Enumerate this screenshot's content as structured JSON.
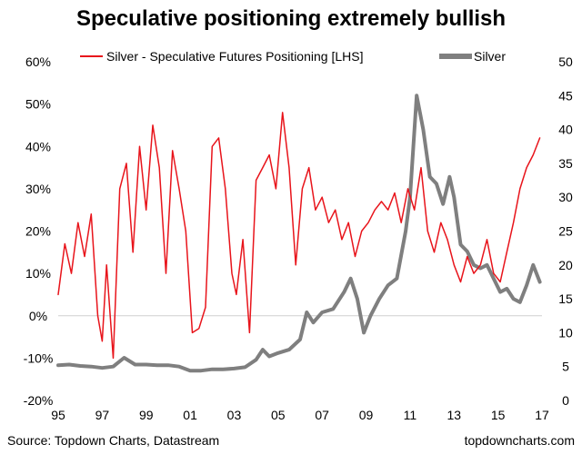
{
  "chart_data": {
    "type": "line",
    "title": "Speculative positioning extremely bullish",
    "source": "Source: Topdown Charts, Datastream",
    "watermark": "topdowncharts.com",
    "x_axis": {
      "range": [
        1995,
        2017
      ],
      "tick_values": [
        1995,
        1997,
        1999,
        2001,
        2003,
        2005,
        2007,
        2009,
        2011,
        2013,
        2015,
        2017
      ],
      "tick_labels": [
        "95",
        "97",
        "99",
        "01",
        "03",
        "05",
        "07",
        "09",
        "11",
        "13",
        "15",
        "17"
      ]
    },
    "y_left": {
      "range": [
        -20,
        60
      ],
      "tick_values": [
        -20,
        -10,
        0,
        10,
        20,
        30,
        40,
        50,
        60
      ],
      "tick_labels": [
        "-20%",
        "-10%",
        "0%",
        "10%",
        "20%",
        "30%",
        "40%",
        "50%",
        "60%"
      ]
    },
    "y_right": {
      "range": [
        0,
        50
      ],
      "tick_values": [
        0,
        5,
        10,
        15,
        20,
        25,
        30,
        35,
        40,
        45,
        50
      ],
      "tick_labels": [
        "0",
        "5",
        "10",
        "15",
        "20",
        "25",
        "30",
        "35",
        "40",
        "45",
        "50"
      ]
    },
    "grid": "horizontal zero line only",
    "legend_position": "top",
    "series": [
      {
        "name": "Silver - Speculative Futures Positioning [LHS]",
        "axis": "left",
        "color": "#e8141b",
        "x": [
          1995.0,
          1995.3,
          1995.6,
          1995.9,
          1996.2,
          1996.5,
          1996.8,
          1997.0,
          1997.2,
          1997.5,
          1997.8,
          1998.1,
          1998.4,
          1998.7,
          1999.0,
          1999.3,
          1999.6,
          1999.9,
          2000.2,
          2000.5,
          2000.8,
          2001.1,
          2001.4,
          2001.7,
          2002.0,
          2002.3,
          2002.6,
          2002.9,
          2003.1,
          2003.4,
          2003.7,
          2004.0,
          2004.3,
          2004.6,
          2004.9,
          2005.2,
          2005.5,
          2005.8,
          2006.1,
          2006.4,
          2006.7,
          2007.0,
          2007.3,
          2007.6,
          2007.9,
          2008.2,
          2008.5,
          2008.8,
          2009.1,
          2009.4,
          2009.7,
          2010.0,
          2010.3,
          2010.6,
          2010.9,
          2011.2,
          2011.5,
          2011.8,
          2012.1,
          2012.4,
          2012.7,
          2013.0,
          2013.3,
          2013.6,
          2013.9,
          2014.2,
          2014.5,
          2014.8,
          2015.1,
          2015.4,
          2015.7,
          2016.0,
          2016.3,
          2016.6,
          2016.9
        ],
        "values": [
          5,
          17,
          10,
          22,
          14,
          24,
          0,
          -6,
          12,
          -10,
          30,
          36,
          15,
          40,
          25,
          45,
          35,
          10,
          39,
          30,
          20,
          -4,
          -3,
          2,
          40,
          42,
          30,
          10,
          5,
          18,
          -4,
          32,
          35,
          38,
          30,
          48,
          35,
          12,
          30,
          35,
          25,
          28,
          22,
          25,
          18,
          22,
          14,
          20,
          22,
          25,
          27,
          25,
          29,
          22,
          30,
          25,
          35,
          20,
          15,
          22,
          18,
          12,
          8,
          14,
          10,
          12,
          18,
          10,
          8,
          15,
          22,
          30,
          35,
          38,
          42
        ]
      },
      {
        "name": "Silver",
        "axis": "right",
        "color": "#7f7f7f",
        "x": [
          1995.0,
          1995.5,
          1996.0,
          1996.5,
          1997.0,
          1997.5,
          1998.0,
          1998.5,
          1999.0,
          1999.5,
          2000.0,
          2000.5,
          2001.0,
          2001.5,
          2002.0,
          2002.5,
          2003.0,
          2003.5,
          2004.0,
          2004.3,
          2004.6,
          2005.0,
          2005.5,
          2006.0,
          2006.3,
          2006.6,
          2007.0,
          2007.5,
          2008.0,
          2008.3,
          2008.6,
          2008.9,
          2009.2,
          2009.6,
          2010.0,
          2010.4,
          2010.8,
          2011.0,
          2011.3,
          2011.6,
          2011.9,
          2012.2,
          2012.5,
          2012.8,
          2013.0,
          2013.3,
          2013.6,
          2013.9,
          2014.2,
          2014.5,
          2014.8,
          2015.1,
          2015.4,
          2015.7,
          2016.0,
          2016.3,
          2016.6,
          2016.9
        ],
        "values": [
          5.2,
          5.3,
          5.1,
          5.0,
          4.8,
          5.0,
          6.3,
          5.3,
          5.3,
          5.2,
          5.2,
          5.0,
          4.4,
          4.4,
          4.6,
          4.6,
          4.7,
          4.9,
          6.0,
          7.5,
          6.5,
          7.0,
          7.5,
          9.0,
          13.0,
          11.5,
          13.0,
          13.5,
          16.0,
          18.0,
          15.0,
          10.0,
          12.5,
          15.0,
          17.0,
          18.0,
          25.0,
          30.0,
          45.0,
          40.0,
          33.0,
          32.0,
          29.0,
          33.0,
          30.0,
          23.0,
          22.0,
          20.0,
          19.5,
          20.0,
          18.0,
          16.0,
          16.5,
          15.0,
          14.5,
          17.0,
          20.0,
          17.5
        ]
      }
    ]
  }
}
